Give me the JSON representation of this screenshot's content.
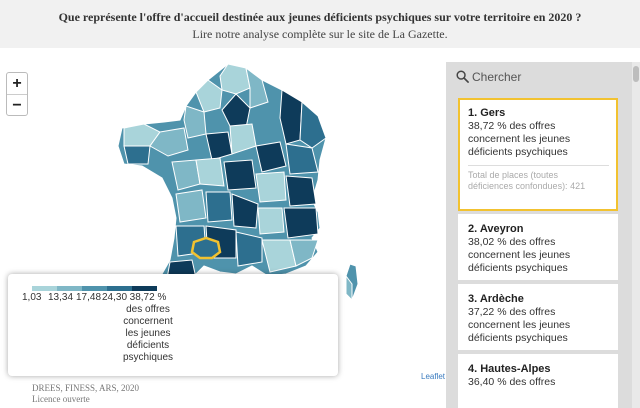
{
  "header": {
    "title": "Que représente l'offre d'accueil destinée aux jeunes déficients psychiques sur votre territoire en 2020 ?",
    "subtitle": "Lire notre analyse complète sur le site de La Gazette."
  },
  "zoom": {
    "in_label": "+",
    "out_label": "−"
  },
  "map": {
    "highlighted_department": "Gers",
    "highlight_color": "#f2c230",
    "colors": [
      "#a9d4da",
      "#7fb7c6",
      "#4f93ac",
      "#2d6f8f",
      "#0e3b5a"
    ]
  },
  "legend": {
    "breaks": [
      "1,03",
      "13,34",
      "17,48",
      "24,30",
      "38,72 %"
    ],
    "unit_text": [
      "des offres",
      "concernent",
      "les jeunes",
      "déficients",
      "psychiques"
    ],
    "colors": [
      "#a9d4da",
      "#7fb7c6",
      "#4f93ac",
      "#2d6f8f",
      "#0e3b5a"
    ]
  },
  "attribution": {
    "leaflet": "Leaflet"
  },
  "source": {
    "line1": "DREES, FINESS, ARS, 2020",
    "line2": "Licence ouverte"
  },
  "search": {
    "placeholder": "Chercher"
  },
  "ranking": [
    {
      "name": "1. Gers",
      "value_lines": [
        "38,72 % des offres",
        "concernent les jeunes",
        "déficients psychiques"
      ],
      "total_lines": [
        "Total de places (toutes",
        "déficiences confondues): 421"
      ]
    },
    {
      "name": "2. Aveyron",
      "value_lines": [
        "38,02 % des offres",
        "concernent les jeunes",
        "déficients psychiques"
      ]
    },
    {
      "name": "3. Ardèche",
      "value_lines": [
        "37,22 % des offres",
        "concernent les jeunes",
        "déficients psychiques"
      ]
    },
    {
      "name": "4. Hautes-Alpes",
      "value_lines": [
        "36,40 % des offres"
      ]
    }
  ]
}
